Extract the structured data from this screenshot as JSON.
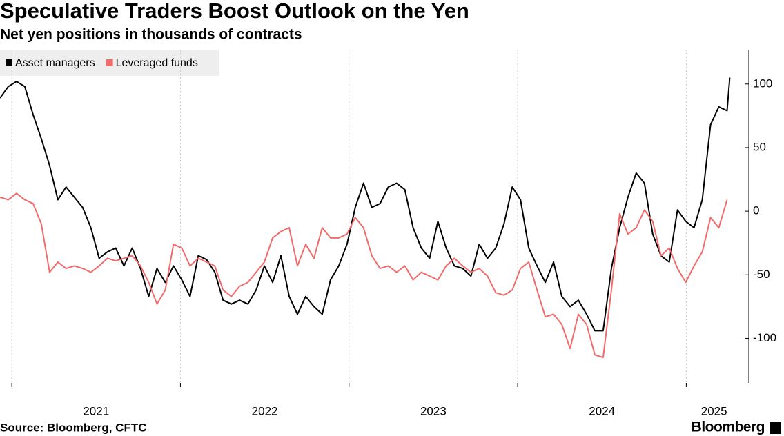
{
  "chart_data": {
    "type": "line",
    "title": "Speculative Traders Boost Outlook on the Yen",
    "subtitle": "Net yen positions in thousands of contracts",
    "source": "Source: Bloomberg, CFTC",
    "brand": "Bloomberg",
    "xlim": [
      2020.93,
      2025.33
    ],
    "xticks": [
      {
        "value": 2021,
        "label": "2021"
      },
      {
        "value": 2022,
        "label": "2022"
      },
      {
        "value": 2023,
        "label": "2023"
      },
      {
        "value": 2024,
        "label": "2024"
      },
      {
        "value": 2025,
        "label": "2025"
      }
    ],
    "ylim": [
      -135,
      127
    ],
    "yticks": [
      -100,
      -50,
      0,
      50,
      100
    ],
    "grid": true,
    "legend": "top-left",
    "series": [
      {
        "name": "Asset managers",
        "color": "#000000",
        "x": [
          2020.93,
          2020.979,
          2021.028,
          2021.077,
          2021.126,
          2021.175,
          2021.224,
          2021.273,
          2021.322,
          2021.371,
          2021.42,
          2021.469,
          2021.518,
          2021.567,
          2021.616,
          2021.665,
          2021.714,
          2021.763,
          2021.812,
          2021.861,
          2021.91,
          2021.959,
          2022.008,
          2022.057,
          2022.106,
          2022.155,
          2022.204,
          2022.253,
          2022.302,
          2022.351,
          2022.4,
          2022.449,
          2022.498,
          2022.547,
          2022.596,
          2022.645,
          2022.694,
          2022.743,
          2022.792,
          2022.841,
          2022.89,
          2022.939,
          2022.988,
          2023.037,
          2023.086,
          2023.135,
          2023.184,
          2023.233,
          2023.282,
          2023.331,
          2023.38,
          2023.429,
          2023.478,
          2023.527,
          2023.576,
          2023.625,
          2023.674,
          2023.723,
          2023.772,
          2023.821,
          2023.87,
          2023.919,
          2023.968,
          2024.017,
          2024.066,
          2024.115,
          2024.164,
          2024.213,
          2024.262,
          2024.311,
          2024.36,
          2024.409,
          2024.458,
          2024.507,
          2024.556,
          2024.605,
          2024.654,
          2024.703,
          2024.752,
          2024.801,
          2024.85,
          2024.899,
          2024.948,
          2024.997,
          2025.046,
          2025.095,
          2025.144,
          2025.193,
          2025.242,
          2025.258
        ],
        "values": [
          89,
          98,
          102,
          98,
          76,
          57,
          36,
          9,
          19,
          11,
          3,
          -13,
          -37,
          -32,
          -29,
          -43,
          -29,
          -45,
          -67,
          -45,
          -56,
          -43,
          -54,
          -67,
          -35,
          -38,
          -48,
          -70,
          -73,
          -70,
          -73,
          -62,
          -43,
          -56,
          -35,
          -67,
          -81,
          -67,
          -75,
          -81,
          -54,
          -43,
          -26,
          3,
          22,
          3,
          6,
          19,
          22,
          17,
          -13,
          -29,
          -37,
          -8,
          -29,
          -43,
          -45,
          -51,
          -26,
          -37,
          -29,
          -10,
          19,
          9,
          -29,
          -43,
          -56,
          -40,
          -67,
          -75,
          -70,
          -81,
          -94,
          -94,
          -45,
          -13,
          11,
          30,
          22,
          -18,
          -35,
          -40,
          1,
          -8,
          -13,
          9,
          68,
          82,
          79,
          105
        ]
      },
      {
        "name": "Leveraged funds",
        "color": "#f26b6b",
        "x": [
          2020.93,
          2020.979,
          2021.028,
          2021.077,
          2021.126,
          2021.175,
          2021.224,
          2021.273,
          2021.322,
          2021.371,
          2021.42,
          2021.469,
          2021.518,
          2021.567,
          2021.616,
          2021.665,
          2021.714,
          2021.763,
          2021.812,
          2021.861,
          2021.91,
          2021.959,
          2022.008,
          2022.057,
          2022.106,
          2022.155,
          2022.204,
          2022.253,
          2022.302,
          2022.351,
          2022.4,
          2022.449,
          2022.498,
          2022.547,
          2022.596,
          2022.645,
          2022.694,
          2022.743,
          2022.792,
          2022.841,
          2022.89,
          2022.939,
          2022.988,
          2023.037,
          2023.086,
          2023.135,
          2023.184,
          2023.233,
          2023.282,
          2023.331,
          2023.38,
          2023.429,
          2023.478,
          2023.527,
          2023.576,
          2023.625,
          2023.674,
          2023.723,
          2023.772,
          2023.821,
          2023.87,
          2023.919,
          2023.968,
          2024.017,
          2024.066,
          2024.115,
          2024.164,
          2024.213,
          2024.262,
          2024.311,
          2024.36,
          2024.409,
          2024.458,
          2024.507,
          2024.556,
          2024.605,
          2024.654,
          2024.703,
          2024.752,
          2024.801,
          2024.85,
          2024.899,
          2024.948,
          2024.997,
          2025.046,
          2025.095,
          2025.144,
          2025.193,
          2025.242
        ],
        "values": [
          11,
          9,
          14,
          9,
          6,
          -10,
          -48,
          -40,
          -45,
          -43,
          -45,
          -48,
          -43,
          -37,
          -39,
          -37,
          -35,
          -43,
          -56,
          -73,
          -62,
          -26,
          -29,
          -43,
          -37,
          -40,
          -43,
          -62,
          -67,
          -59,
          -56,
          -48,
          -40,
          -21,
          -16,
          -13,
          -43,
          -26,
          -37,
          -13,
          -21,
          -21,
          -18,
          -5,
          -13,
          -35,
          -45,
          -43,
          -48,
          -43,
          -54,
          -48,
          -51,
          -54,
          -43,
          -37,
          -43,
          -48,
          -45,
          -51,
          -64,
          -66,
          -62,
          -45,
          -40,
          -62,
          -83,
          -81,
          -89,
          -108,
          -81,
          -89,
          -113,
          -115,
          -62,
          -2,
          -18,
          -13,
          1,
          -8,
          -35,
          -29,
          -45,
          -56,
          -43,
          -32,
          -5,
          -13,
          9
        ]
      }
    ]
  }
}
